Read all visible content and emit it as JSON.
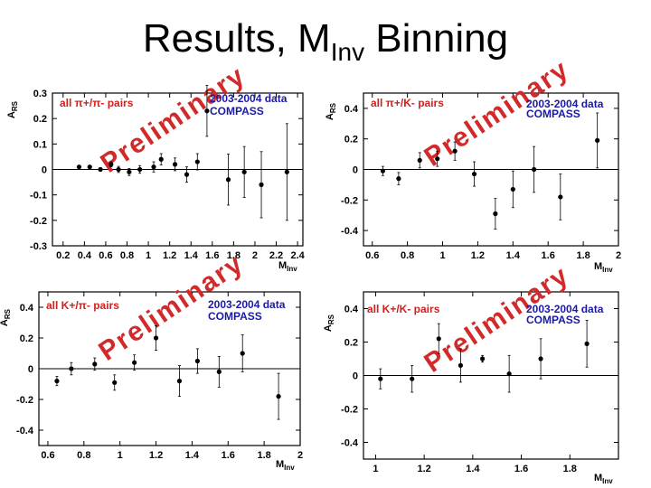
{
  "slide": {
    "title_main": "Results, M",
    "title_sub": "Inv",
    "title_tail": " Binning"
  },
  "chart_data": [
    {
      "type": "scatter",
      "ylabel": "A",
      "ylabel_sub": "RS",
      "xlabel": "M",
      "xlabel_sub": "Inv",
      "pairs_label": "all π+/π- pairs",
      "data_label_1": "2003-2004 data",
      "data_label_2": "COMPASS",
      "watermark": "Preliminary",
      "xlim": [
        0.1,
        2.45
      ],
      "ylim": [
        -0.3,
        0.3
      ],
      "xticks": [
        0.2,
        0.4,
        0.6,
        0.8,
        1,
        1.2,
        1.4,
        1.6,
        1.8,
        2,
        2.2,
        2.4
      ],
      "xtick_labels": [
        "0.2",
        "0.4",
        "0.6",
        "0.8",
        "1",
        "1.2",
        "1.4",
        "1.6",
        "1.8",
        "2",
        "2.2",
        "2.4"
      ],
      "yticks": [
        -0.3,
        -0.2,
        -0.1,
        0,
        0.1,
        0.2,
        0.3
      ],
      "ytick_labels": [
        "-0.3",
        "-0.2",
        "-0.1",
        "0",
        "0.1",
        "0.2",
        "0.3"
      ],
      "points": [
        {
          "x": 0.35,
          "y": 0.01,
          "err": 0.006
        },
        {
          "x": 0.45,
          "y": 0.01,
          "err": 0.006
        },
        {
          "x": 0.55,
          "y": 0.0,
          "err": 0.007
        },
        {
          "x": 0.65,
          "y": 0.02,
          "err": 0.01
        },
        {
          "x": 0.72,
          "y": 0.0,
          "err": 0.012
        },
        {
          "x": 0.82,
          "y": -0.01,
          "err": 0.014
        },
        {
          "x": 0.92,
          "y": 0.0,
          "err": 0.015
        },
        {
          "x": 1.05,
          "y": 0.01,
          "err": 0.02
        },
        {
          "x": 1.12,
          "y": 0.04,
          "err": 0.022
        },
        {
          "x": 1.25,
          "y": 0.02,
          "err": 0.025
        },
        {
          "x": 1.36,
          "y": -0.02,
          "err": 0.03
        },
        {
          "x": 1.46,
          "y": 0.03,
          "err": 0.032
        },
        {
          "x": 1.55,
          "y": 0.23,
          "err": 0.1
        },
        {
          "x": 1.75,
          "y": -0.04,
          "err": 0.1
        },
        {
          "x": 1.9,
          "y": -0.01,
          "err": 0.1
        },
        {
          "x": 2.06,
          "y": -0.06,
          "err": 0.13
        },
        {
          "x": 2.3,
          "y": -0.01,
          "err": 0.19
        }
      ]
    },
    {
      "type": "scatter",
      "ylabel": "A",
      "ylabel_sub": "RS",
      "xlabel": "M",
      "xlabel_sub": "Inv",
      "pairs_label": "all π+/K- pairs",
      "data_label_1": "2003-2004 data",
      "data_label_2": "COMPASS",
      "watermark": "Preliminary",
      "xlim": [
        0.55,
        2.0
      ],
      "ylim": [
        -0.5,
        0.5
      ],
      "xticks": [
        0.6,
        0.8,
        1,
        1.2,
        1.4,
        1.6,
        1.8,
        2
      ],
      "xtick_labels": [
        "0.6",
        "0.8",
        "1",
        "1.2",
        "1.4",
        "1.6",
        "1.8",
        "2"
      ],
      "yticks": [
        -0.4,
        -0.2,
        0,
        0.2,
        0.4
      ],
      "ytick_labels": [
        "-0.4",
        "-0.2",
        "0",
        "0.2",
        "0.4"
      ],
      "points": [
        {
          "x": 0.66,
          "y": -0.01,
          "err": 0.03
        },
        {
          "x": 0.75,
          "y": -0.06,
          "err": 0.04
        },
        {
          "x": 0.87,
          "y": 0.06,
          "err": 0.05
        },
        {
          "x": 0.97,
          "y": 0.07,
          "err": 0.05
        },
        {
          "x": 1.07,
          "y": 0.12,
          "err": 0.06
        },
        {
          "x": 1.18,
          "y": -0.03,
          "err": 0.08
        },
        {
          "x": 1.3,
          "y": -0.29,
          "err": 0.1
        },
        {
          "x": 1.4,
          "y": -0.13,
          "err": 0.12
        },
        {
          "x": 1.52,
          "y": 0.0,
          "err": 0.15
        },
        {
          "x": 1.67,
          "y": -0.18,
          "err": 0.15
        },
        {
          "x": 1.88,
          "y": 0.19,
          "err": 0.18
        }
      ]
    },
    {
      "type": "scatter",
      "ylabel": "A",
      "ylabel_sub": "RS",
      "xlabel": "M",
      "xlabel_sub": "Inv",
      "pairs_label": "all K+/π- pairs",
      "data_label_1": "2003-2004 data",
      "data_label_2": "COMPASS",
      "watermark": "Preliminary",
      "xlim": [
        0.55,
        2.0
      ],
      "ylim": [
        -0.5,
        0.5
      ],
      "xticks": [
        0.6,
        0.8,
        1,
        1.2,
        1.4,
        1.6,
        1.8,
        2
      ],
      "xtick_labels": [
        "0.6",
        "0.8",
        "1",
        "1.2",
        "1.4",
        "1.6",
        "1.8",
        "2"
      ],
      "yticks": [
        -0.4,
        -0.2,
        0,
        0.2,
        0.4
      ],
      "ytick_labels": [
        "-0.4",
        "-0.2",
        "0",
        "0.2",
        "0.4"
      ],
      "points": [
        {
          "x": 0.65,
          "y": -0.08,
          "err": 0.03
        },
        {
          "x": 0.73,
          "y": 0.0,
          "err": 0.04
        },
        {
          "x": 0.86,
          "y": 0.03,
          "err": 0.04
        },
        {
          "x": 0.97,
          "y": -0.09,
          "err": 0.05
        },
        {
          "x": 1.08,
          "y": 0.04,
          "err": 0.05
        },
        {
          "x": 1.2,
          "y": 0.2,
          "err": 0.08
        },
        {
          "x": 1.33,
          "y": -0.08,
          "err": 0.1
        },
        {
          "x": 1.43,
          "y": 0.05,
          "err": 0.08
        },
        {
          "x": 1.55,
          "y": -0.02,
          "err": 0.1
        },
        {
          "x": 1.68,
          "y": 0.1,
          "err": 0.12
        },
        {
          "x": 1.88,
          "y": -0.18,
          "err": 0.15
        }
      ]
    },
    {
      "type": "scatter",
      "ylabel": "A",
      "ylabel_sub": "RS",
      "xlabel": "M",
      "xlabel_sub": "Inv",
      "pairs_label": "all K+/K- pairs",
      "data_label_1": "2003-2004 data",
      "data_label_2": "COMPASS",
      "watermark": "Preliminary",
      "xlim": [
        0.95,
        2.0
      ],
      "ylim": [
        -0.5,
        0.5
      ],
      "xticks": [
        1,
        1.2,
        1.4,
        1.6,
        1.8
      ],
      "xtick_labels": [
        "1",
        "1.2",
        "1.4",
        "1.6",
        "1.8"
      ],
      "yticks": [
        -0.4,
        -0.2,
        0,
        0.2,
        0.4
      ],
      "ytick_labels": [
        "-0.4",
        "-0.2",
        "0",
        "0.2",
        "0.4"
      ],
      "points": [
        {
          "x": 1.02,
          "y": -0.02,
          "err": 0.06
        },
        {
          "x": 1.15,
          "y": -0.02,
          "err": 0.08
        },
        {
          "x": 1.26,
          "y": 0.22,
          "err": 0.09
        },
        {
          "x": 1.35,
          "y": 0.06,
          "err": 0.1
        },
        {
          "x": 1.44,
          "y": 0.1,
          "err": 0.02
        },
        {
          "x": 1.55,
          "y": 0.01,
          "err": 0.11
        },
        {
          "x": 1.68,
          "y": 0.1,
          "err": 0.12
        },
        {
          "x": 1.87,
          "y": 0.19,
          "err": 0.14
        }
      ]
    }
  ]
}
